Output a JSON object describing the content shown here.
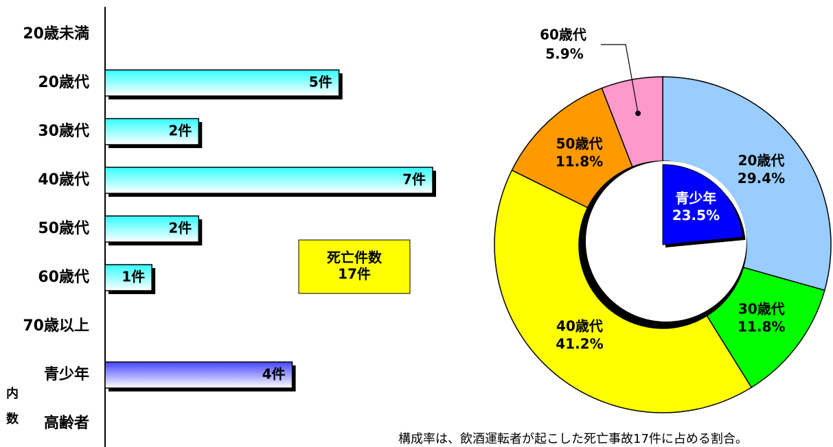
{
  "chart_data": [
    {
      "type": "hbar",
      "categories": [
        "20歳未満",
        "20歳代",
        "30歳代",
        "40歳代",
        "50歳代",
        "60歳代",
        "70歳以上",
        "青少年",
        "高齢者"
      ],
      "values": [
        0,
        5,
        2,
        7,
        2,
        1,
        0,
        4,
        0
      ],
      "value_labels": [
        null,
        "5件",
        "2件",
        "7件",
        "2件",
        "1件",
        null,
        "4件",
        null
      ],
      "colors": [
        "#00ffff",
        "#00ffff",
        "#00ffff",
        "#00ffff",
        "#00ffff",
        "#00ffff",
        "#00ffff",
        "#4444ff",
        "#4444ff"
      ],
      "xlim": [
        0,
        7
      ],
      "group_label": [
        "内",
        "数"
      ],
      "annotation": [
        "死亡件数",
        "17件"
      ]
    },
    {
      "type": "donut",
      "categories": [
        "20歳代",
        "30歳代",
        "40歳代",
        "50歳代",
        "60歳代"
      ],
      "values": [
        29.4,
        11.8,
        41.2,
        11.8,
        5.9
      ],
      "value_labels": [
        "29.4%",
        "11.8%",
        "41.2%",
        "11.8%",
        "5.9%"
      ],
      "colors": [
        "#99ccff",
        "#00ff00",
        "#ffff00",
        "#ff9900",
        "#ff99cc"
      ],
      "inner": {
        "name": "青少年",
        "value": 23.5,
        "value_label": "23.5%",
        "color": "#0000ff"
      },
      "note": "構成率は、飲酒運転者が起こした死亡事故17件に占める割合。"
    }
  ]
}
